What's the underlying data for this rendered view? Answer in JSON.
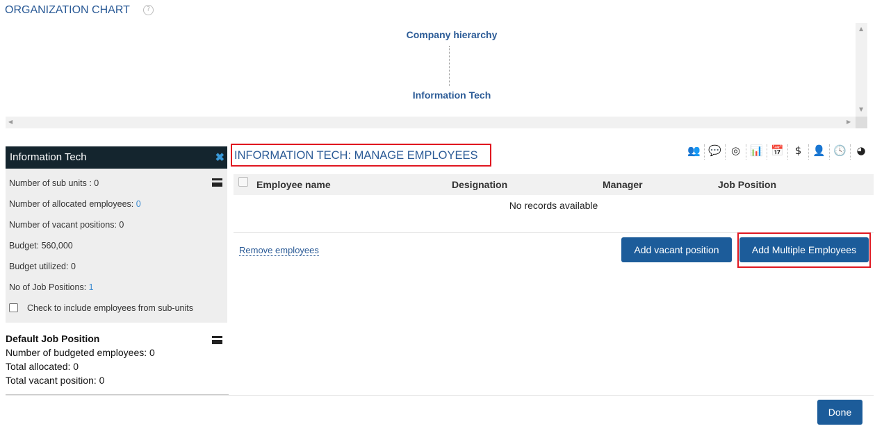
{
  "page": {
    "title": "ORGANIZATION CHART",
    "help_icon": "question-circle-icon"
  },
  "chart": {
    "root": "Company hierarchy",
    "child": "Information Tech"
  },
  "panel": {
    "title": "Information Tech",
    "sub_units": "Number of sub units : 0",
    "allocated_label": "Number of allocated employees: ",
    "allocated_value": "0",
    "vacant": "Number of vacant positions: 0",
    "budget": "Budget: 560,000",
    "budget_utilized": "Budget utilized: 0",
    "job_positions_label": "No of Job Positions: ",
    "job_positions_value": "1",
    "include_sub_units": "Check to include employees from sub-units"
  },
  "default_job": {
    "title": "Default Job Position",
    "budgeted": "Number of budgeted employees: 0",
    "allocated": "Total allocated: 0",
    "vacant": "Total vacant position: 0"
  },
  "main": {
    "title": "INFORMATION TECH: MANAGE EMPLOYEES",
    "toolbar_icons": [
      "users-icon",
      "comment-icon",
      "target-icon",
      "bar-chart-icon",
      "calendar-icon",
      "hand-dollar-icon",
      "user-clock-icon",
      "clock-icon",
      "pie-chart-icon"
    ],
    "columns": [
      "Employee name",
      "Designation",
      "Manager",
      "Job Position"
    ],
    "empty": "No records available",
    "remove": "Remove employees",
    "add_vacant": "Add vacant position",
    "add_multiple": "Add Multiple Employees",
    "done": "Done"
  },
  "colors": {
    "accent": "#1c5c9a",
    "highlight": "#e0161f",
    "panel_header": "#14252e"
  }
}
